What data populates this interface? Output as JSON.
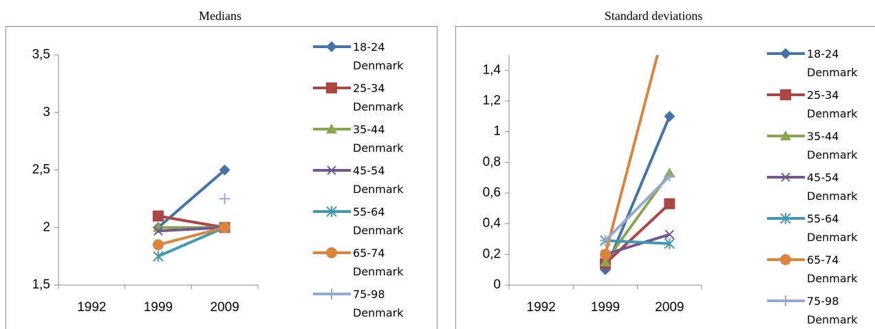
{
  "chart_data": [
    {
      "type": "line",
      "title": "Medians",
      "categories": [
        "1992",
        "1999",
        "2009"
      ],
      "ylim": [
        1.5,
        3.5
      ],
      "yticks": [
        {
          "value": 1.5,
          "label": "1,5"
        },
        2,
        {
          "value": 2.5,
          "label": "2,5"
        },
        3,
        {
          "value": 3.5,
          "label": "3,5"
        }
      ],
      "grid": false,
      "series": [
        {
          "name": "18-24 Denmark",
          "color": "#4572a7",
          "values": [
            null,
            2,
            2.5
          ]
        },
        {
          "name": "25-34 Denmark",
          "color": "#aa4643",
          "values": [
            null,
            2.1,
            2
          ]
        },
        {
          "name": "35-44 Denmark",
          "color": "#89a54e",
          "values": [
            null,
            2,
            2
          ]
        },
        {
          "name": "45-54 Denmark",
          "color": "#71588f",
          "values": [
            null,
            1.97,
            2
          ]
        },
        {
          "name": "55-64 Denmark",
          "color": "#4198af",
          "values": [
            null,
            1.75,
            2
          ]
        },
        {
          "name": "65-74 Denmark",
          "color": "#db843d",
          "values": [
            null,
            1.85,
            2
          ]
        },
        {
          "name": "75-98 Denmark",
          "color": "#93a9cf",
          "values": [
            null,
            null,
            2.25
          ]
        }
      ]
    },
    {
      "type": "line",
      "title": "Standard deviations",
      "categories": [
        "1992",
        "1999",
        "2009"
      ],
      "ylim": [
        0,
        1.5
      ],
      "yticks": [
        0,
        {
          "value": 0.2,
          "label": "0,2"
        },
        {
          "value": 0.4,
          "label": "0,4"
        },
        {
          "value": 0.6,
          "label": "0,6"
        },
        {
          "value": 0.8,
          "label": "0,8"
        },
        1,
        {
          "value": 1.2,
          "label": "1,2"
        },
        {
          "value": 1.4,
          "label": "1,4"
        }
      ],
      "grid": false,
      "series": [
        {
          "name": "18-24 Denmark",
          "color": "#4572a7",
          "values": [
            null,
            0.1,
            1.1
          ]
        },
        {
          "name": "25-34 Denmark",
          "color": "#aa4643",
          "values": [
            null,
            0.14,
            0.53
          ]
        },
        {
          "name": "35-44 Denmark",
          "color": "#89a54e",
          "values": [
            null,
            0.15,
            0.73
          ]
        },
        {
          "name": "45-54 Denmark",
          "color": "#71588f",
          "values": [
            null,
            0.2,
            0.33
          ]
        },
        {
          "name": "55-64 Denmark",
          "color": "#4198af",
          "values": [
            null,
            0.29,
            0.27
          ]
        },
        {
          "name": "65-74 Denmark",
          "color": "#db843d",
          "values": [
            null,
            0.2,
            1.8
          ]
        },
        {
          "name": "75-98 Denmark",
          "color": "#93a9cf",
          "values": [
            null,
            0.29,
            0.71
          ]
        }
      ]
    }
  ]
}
